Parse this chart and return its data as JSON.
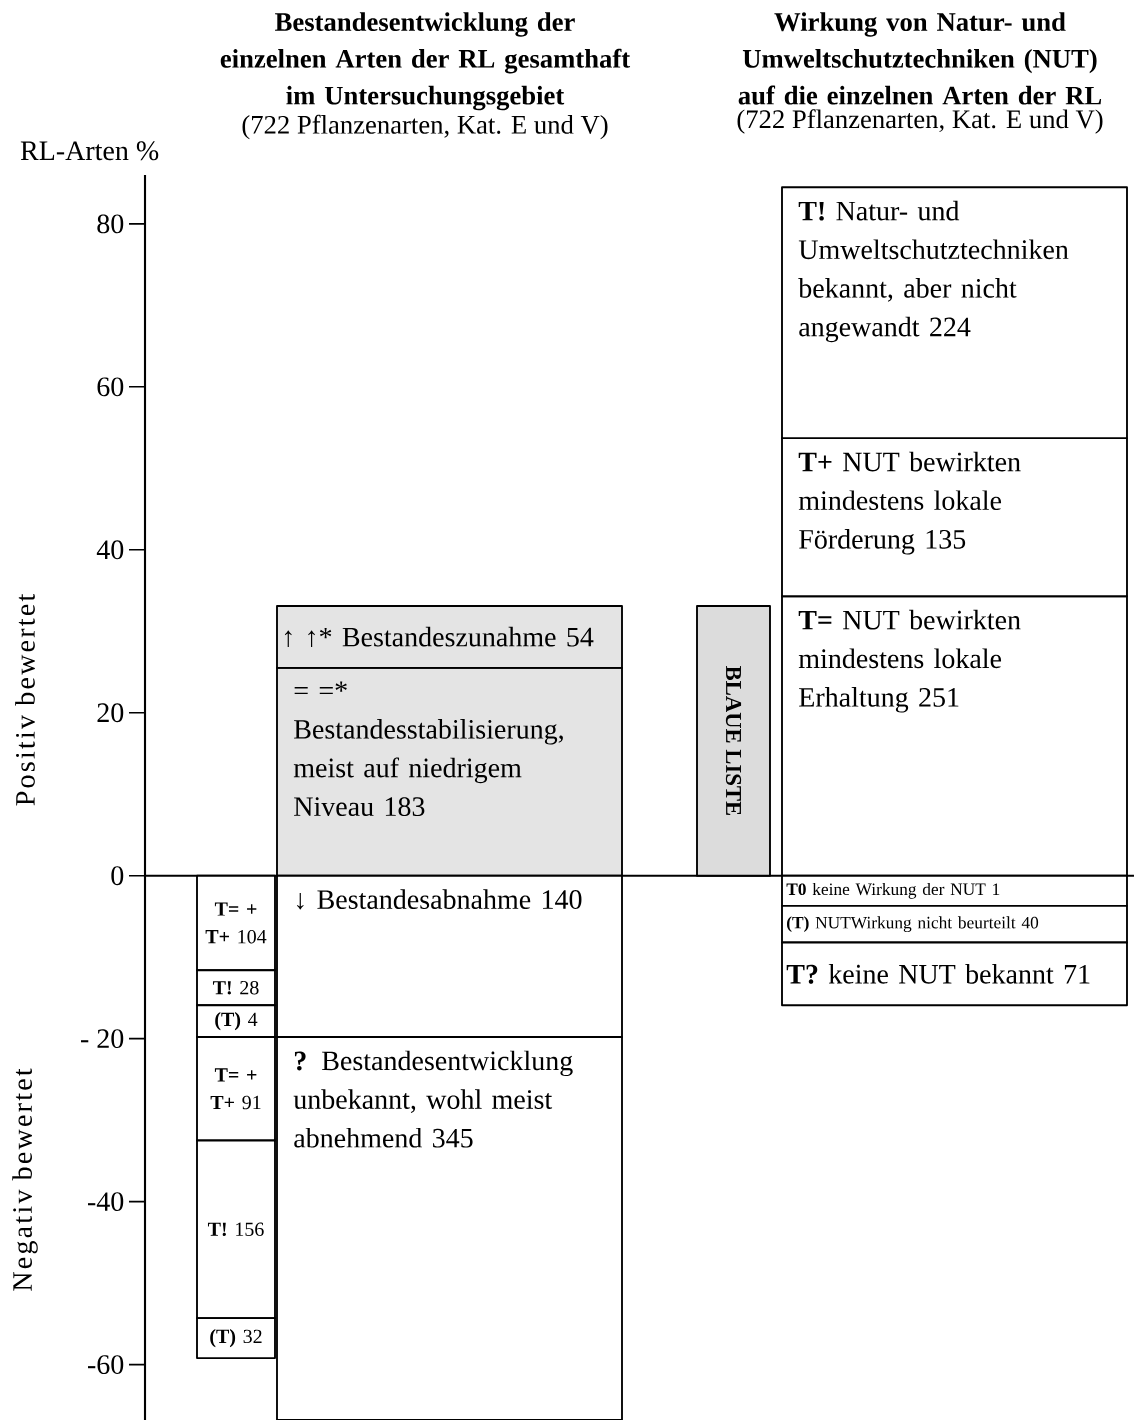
{
  "chart_data": {
    "type": "bar",
    "stacked": true,
    "ylabel": "RL-Arten %",
    "annotations": [
      "Bestandesentwicklung der einzelnen Arten der RL gesamthaft im Untersuchungsgebiet",
      "(722 Pflanzenarten, Kat. E und V)",
      "Wirkung von Natur- und Umweltschutztechniken (NUT) auf die einzelnen Arten der RL",
      "(722 Pflanzenarten, Kat. E und V)",
      "Positiv bewertet",
      "Negativ bewertet"
    ],
    "categories": [
      null,
      null,
      null,
      null
    ],
    "ylim": [
      -66.8,
      86
    ],
    "yticks": [
      -60,
      -40,
      {
        "value": -20,
        "label": "- 20"
      },
      0,
      20,
      40,
      60,
      80
    ],
    "series": [
      {
        "name": "**T= + T+** 104",
        "color": "#ffffff",
        "values": [
          -11.6,
          null,
          null,
          null
        ]
      },
      {
        "name": "**T!** 28",
        "color": "#ffffff",
        "values": [
          -4.3,
          null,
          null,
          null
        ]
      },
      {
        "name": "**(T)** 4",
        "color": "#ffffff",
        "values": [
          -3.9,
          null,
          null,
          null
        ]
      },
      {
        "name": "**T= + T+** 91",
        "color": "#ffffff",
        "values": [
          -12.7,
          null,
          null,
          null
        ]
      },
      {
        "name": "**T!** 156",
        "color": "#ffffff",
        "values": [
          -21.8,
          null,
          null,
          null
        ]
      },
      {
        "name": "**(T)** 32",
        "color": "#ffffff",
        "values": [
          -4.9,
          null,
          null,
          null
        ]
      },
      {
        "name": "= =* Bestandesstabilisierung, meist auf niedrigem Niveau 183",
        "color": "#e4e4e4",
        "values": [
          null,
          25.5,
          null,
          null
        ]
      },
      {
        "name": "↑ ↑* Bestandeszunahme 54",
        "color": "#e4e4e4",
        "values": [
          null,
          7.6,
          null,
          null
        ]
      },
      {
        "name": "↓ Bestandesabnahme 140",
        "color": "#ffffff",
        "values": [
          null,
          -19.8,
          null,
          null
        ]
      },
      {
        "name": "**?** Bestandesentwicklung unbekannt, wohl meist abnehmend 345",
        "color": "#ffffff",
        "values": [
          null,
          -47.0,
          null,
          null
        ]
      },
      {
        "name": "BLAUE LISTE",
        "color": "#dcdcdc",
        "values": [
          null,
          null,
          33.1,
          null
        ]
      },
      {
        "name": "**T=** NUT bewirkten mindestens lokale Erhaltung 251",
        "color": "#ffffff",
        "values": [
          null,
          null,
          null,
          34.3
        ]
      },
      {
        "name": "**T+** NUT bewirkten mindestens lokale Förderung 135",
        "color": "#ffffff",
        "values": [
          null,
          null,
          null,
          19.4
        ]
      },
      {
        "name": "**T!** Natur- und Umweltschutztechniken bekannt, aber nicht angewandt 224",
        "color": "#ffffff",
        "values": [
          null,
          null,
          null,
          30.8
        ]
      },
      {
        "name": "**T0** keine Wirkung der NUT 1",
        "color": "#ffffff",
        "values": [
          null,
          null,
          null,
          -3.7
        ]
      },
      {
        "name": "**(T)** NUTWirkung nicht beurteilt 40",
        "color": "#ffffff",
        "values": [
          null,
          null,
          null,
          -4.5
        ]
      },
      {
        "name": "**T?** keine NUT bekannt 71",
        "color": "#ffffff",
        "values": [
          null,
          null,
          null,
          -7.7
        ]
      }
    ]
  }
}
